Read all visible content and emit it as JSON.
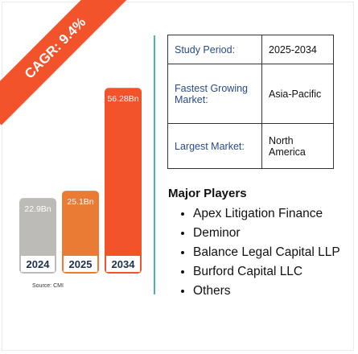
{
  "cagr_label": "CAGR: 9.4%",
  "source": "Source: CMI",
  "chart_data": {
    "type": "bar",
    "categories": [
      "2024",
      "2025",
      "2034"
    ],
    "values": [
      22.9,
      25.1,
      56.28
    ],
    "value_labels": [
      "22.9Bn",
      "25.1Bn",
      "56.28Bn"
    ],
    "bar_colors": [
      "#bdbbb8",
      "#e97b34",
      "#f2532b"
    ],
    "ylim": [
      0,
      60
    ]
  },
  "table": {
    "rows": [
      {
        "key": "Study Period:",
        "value": "2025-2034"
      },
      {
        "key": "Fastest Growing Market:",
        "value": "Asia-Pacific"
      },
      {
        "key": "Largest Market:",
        "value": "North America"
      }
    ]
  },
  "players": {
    "title": "Major Players",
    "items": [
      "Apex Litigation Finance",
      "Deminor",
      "Balance Legal Capital LLP",
      "Burford Capital LLC",
      "Others"
    ]
  }
}
